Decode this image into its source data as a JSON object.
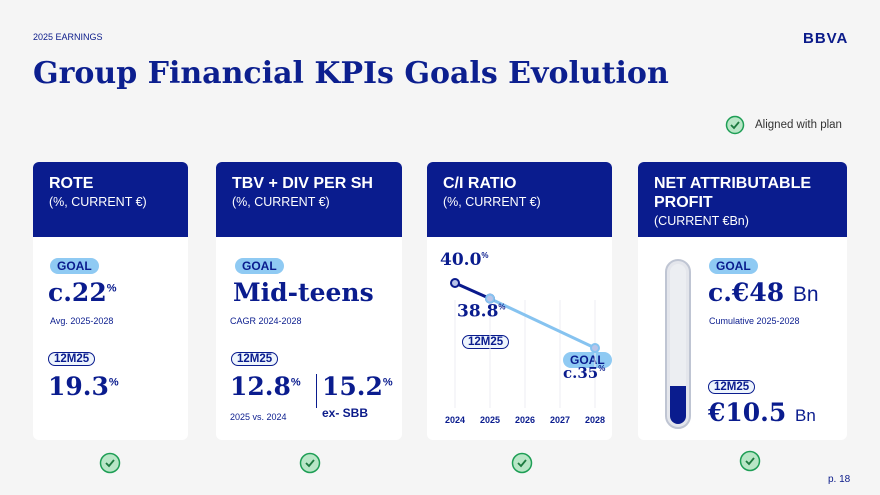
{
  "header": {
    "label": "2025 EARNINGS",
    "logo": "BBVA",
    "title": "Group Financial KPIs Goals Evolution"
  },
  "legend": "Aligned with plan",
  "cards": [
    {
      "title": "ROTE",
      "subtitle": "(%, CURRENT €)",
      "goal_tag": "GOAL",
      "goal": "c.22",
      "goal_unit": "%",
      "goal_note": "Avg. 2025-2028",
      "actual_tag": "12M25",
      "actual": "19.3",
      "actual_unit": "%"
    },
    {
      "title": "TBV + DIV PER SH",
      "subtitle": "(%, CURRENT €)",
      "goal_tag": "GOAL",
      "goal": "Mid-teens",
      "goal_note": "CAGR 2024-2028",
      "actual_tag": "12M25",
      "actual": "12.8",
      "actual_unit": "%",
      "actual_note": "2025 vs. 2024",
      "alt": "15.2",
      "alt_unit": "%",
      "alt_note": "ex- SBB"
    },
    {
      "title": "C/I RATIO",
      "subtitle": "(%, CURRENT €)",
      "actual_tag": "12M25",
      "goal_tag": "GOAL",
      "chart": {
        "type": "line",
        "xlim": [
          2024,
          2028
        ],
        "xticks": [
          2024,
          2025,
          2026,
          2027,
          2028
        ],
        "ylim": [
          31,
          41
        ],
        "label_unit": "%",
        "series": [
          {
            "color": "#0a1a8c",
            "x": [
              2024,
              2025
            ],
            "values": [
              40.0,
              38.8
            ],
            "value_labels": [
              "40.0",
              "38.8"
            ]
          },
          {
            "color": "#86c3f0",
            "x": [
              2025,
              2028
            ],
            "values": [
              38.8,
              35
            ],
            "value_labels": [
              null,
              "c.35"
            ]
          }
        ]
      }
    },
    {
      "title": "NET ATTRIBUTABLE PROFIT",
      "subtitle": "(CURRENT €Bn)",
      "goal_tag": "GOAL",
      "goal": "c.€48",
      "goal_unit": "Bn",
      "goal_note": "Cumulative 2025-2028",
      "actual_tag": "12M25",
      "actual": "€10.5",
      "actual_unit": "Bn"
    }
  ],
  "footer": {
    "page": "p. 18"
  }
}
